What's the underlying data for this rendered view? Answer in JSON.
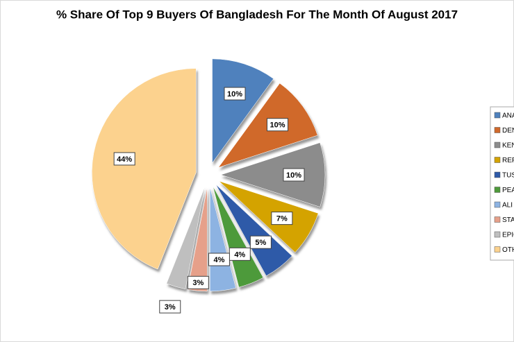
{
  "chart_data": {
    "type": "pie",
    "title": "% Share Of Top 9 Buyers Of Bangladesh For The Month Of August 2017",
    "categories": [
      "ANA",
      "DEN",
      "KEN",
      "REF",
      "TUS",
      "PEA",
      "ALI",
      "STA",
      "EPIC",
      "OTH"
    ],
    "values": [
      10,
      10,
      10,
      7,
      5,
      4,
      4,
      3,
      3,
      44
    ],
    "value_labels": [
      "10%",
      "10%",
      "10%",
      "7%",
      "5%",
      "4%",
      "4%",
      "3%",
      "3%",
      "44%"
    ],
    "colors": [
      "#4f81bd",
      "#d0692b",
      "#8c8c8c",
      "#d4a300",
      "#2e5aa8",
      "#4e9a3a",
      "#8db3e2",
      "#e6a08a",
      "#bfbfbf",
      "#fcd28e"
    ],
    "legend": "right"
  }
}
